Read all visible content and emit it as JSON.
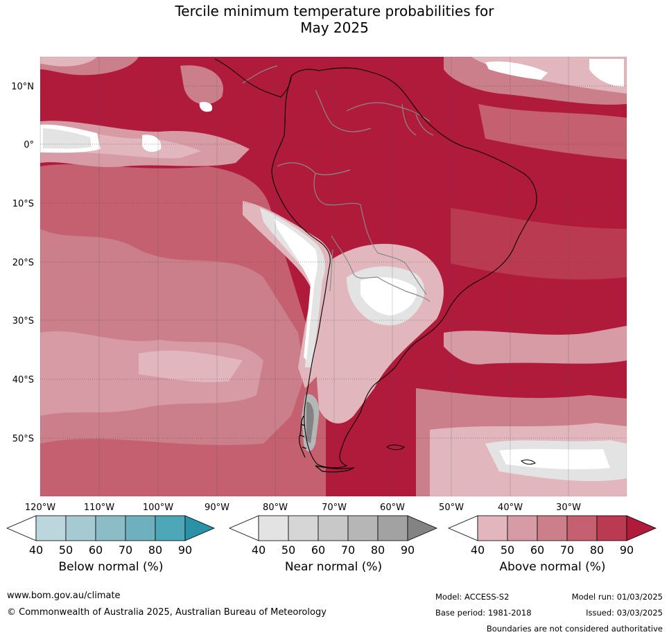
{
  "title": {
    "line1": "Tercile minimum temperature probabilities for",
    "line2": "May 2025"
  },
  "map": {
    "lat_labels": [
      "10°N",
      "0°",
      "10°S",
      "20°S",
      "30°S",
      "40°S",
      "50°S"
    ],
    "lon_labels": [
      "120°W",
      "110°W",
      "100°W",
      "90°W",
      "80°W",
      "70°W",
      "60°W",
      "50°W",
      "40°W",
      "30°W"
    ]
  },
  "colorbars": [
    {
      "label": "Below normal (%)",
      "ticks": [
        "40",
        "50",
        "60",
        "70",
        "80",
        "90"
      ],
      "colors": [
        "#ffffff",
        "#bcd6dd",
        "#a6cad1",
        "#8cbcc6",
        "#6fb0be",
        "#4ea7b6",
        "#2b91a6"
      ]
    },
    {
      "label": "Near normal (%)",
      "ticks": [
        "40",
        "50",
        "60",
        "70",
        "80",
        "90"
      ],
      "colors": [
        "#ffffff",
        "#e3e3e3",
        "#d6d6d6",
        "#c8c8c8",
        "#b6b6b6",
        "#a2a2a2",
        "#838383"
      ]
    },
    {
      "label": "Above normal (%)",
      "ticks": [
        "40",
        "50",
        "60",
        "70",
        "80",
        "90"
      ],
      "colors": [
        "#ffffff",
        "#e1b6bd",
        "#d69ba4",
        "#cb7f8a",
        "#c46070",
        "#ba3a51",
        "#b01a3b"
      ]
    }
  ],
  "footer": {
    "website": "www.bom.gov.au/climate",
    "copyright": "© Commonwealth of Australia 2025, Australian Bureau of Meteorology",
    "model": "Model: ACCESS-S2",
    "model_run": "Model run: 01/03/2025",
    "base_period": "Base period: 1981-2018",
    "issued": "Issued: 03/03/2025",
    "disclaimer": "Boundaries are not considered authoritative"
  }
}
